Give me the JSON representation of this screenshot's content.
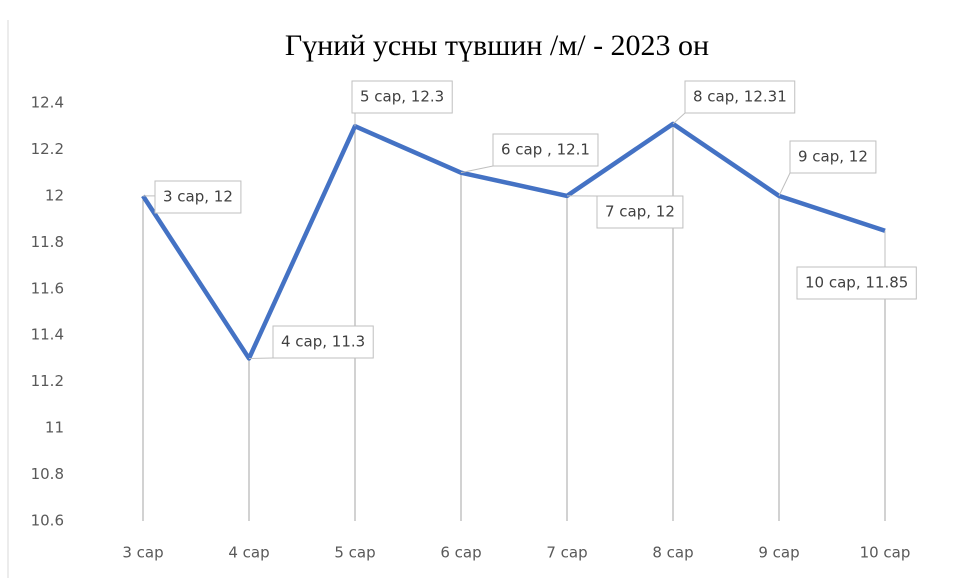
{
  "chart_data": {
    "type": "line",
    "title": "Гүний усны түвшин /м/ - 2023 он",
    "categories": [
      "3 сар",
      "4 сар",
      "5 сар",
      "6 сар",
      "7 сар",
      "8 сар",
      "9 сар",
      "10 сар"
    ],
    "values": [
      12,
      11.3,
      12.3,
      12.1,
      12,
      12.31,
      12,
      11.85
    ],
    "value_labels": [
      "3 сар, 12",
      "4 сар, 11.3",
      "5 сар, 12.3",
      "6 сар , 12.1",
      "7 сар, 12",
      "8 сар, 12.31",
      "9 сар, 12",
      "10 сар, 11.85"
    ],
    "color": "#4472c4",
    "ylim": [
      10.6,
      12.4
    ],
    "yticks": [
      10.6,
      10.8,
      11,
      11.2,
      11.4,
      11.6,
      11.8,
      12,
      12.2,
      12.4
    ],
    "grid": false,
    "drop_lines": true
  }
}
